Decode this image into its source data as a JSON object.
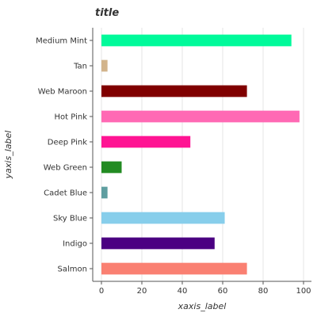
{
  "chart_data": {
    "type": "bar",
    "orientation": "horizontal",
    "title": "title",
    "xlabel": "xaxis_label",
    "ylabel": "yaxis_label",
    "categories": [
      "Salmon",
      "Indigo",
      "Sky Blue",
      "Cadet Blue",
      "Web Green",
      "Deep Pink",
      "Hot Pink",
      "Web Maroon",
      "Tan",
      "Medium Mint"
    ],
    "values": [
      72,
      56,
      61,
      3,
      10,
      44,
      98,
      72,
      3,
      94
    ],
    "colors": [
      "#fa8072",
      "#4b0082",
      "#87ceeb",
      "#5f9ea0",
      "#228b22",
      "#ff1493",
      "#ff69b4",
      "#800000",
      "#d2b48c",
      "#00fa9a"
    ],
    "xlim": [
      0,
      100
    ],
    "xticks": [
      0,
      20,
      40,
      60,
      80,
      100
    ],
    "grid": true,
    "legend": false
  }
}
